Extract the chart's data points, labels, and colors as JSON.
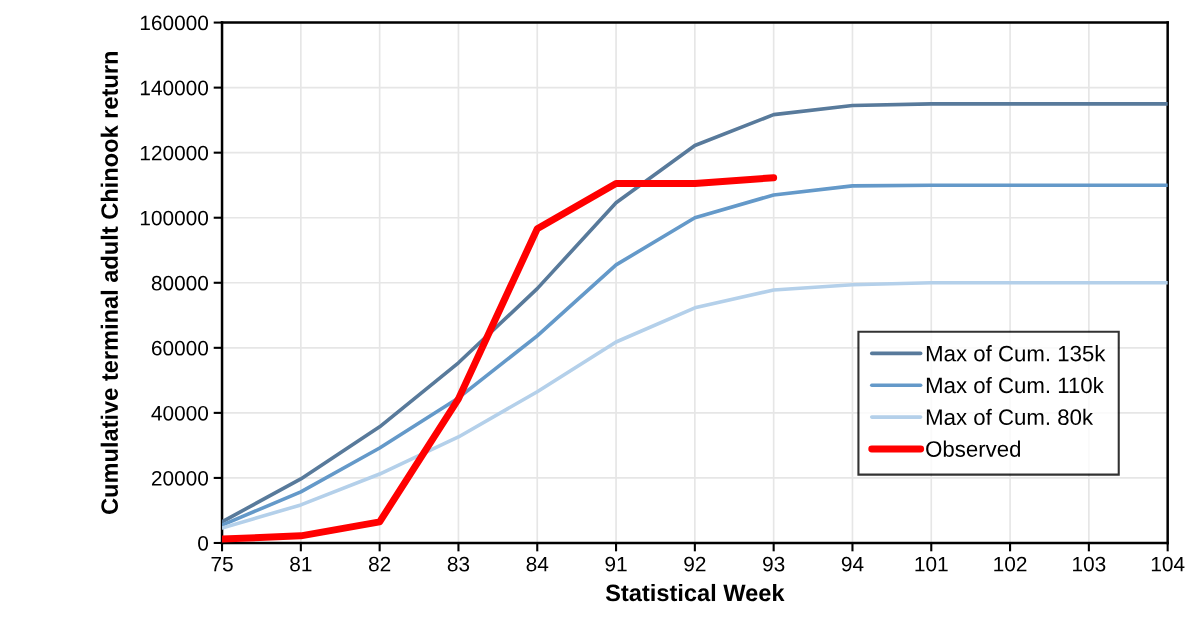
{
  "chart_data": {
    "type": "line",
    "xlabel": "Statistical Week",
    "ylabel": "Cumulative terminal adult Chinook return",
    "categories": [
      "75",
      "81",
      "82",
      "83",
      "84",
      "91",
      "92",
      "93",
      "94",
      "101",
      "102",
      "103",
      "104"
    ],
    "series": [
      {
        "name": "Max of Cum. 135k",
        "color": "#587a9b",
        "values": [
          6500,
          19700,
          35700,
          55400,
          78200,
          104600,
          122200,
          131700,
          134500,
          135000,
          135000,
          135000,
          135000
        ]
      },
      {
        "name": "Max of Cum. 110k",
        "color": "#6499c9",
        "values": [
          5500,
          15700,
          29200,
          44600,
          63700,
          85500,
          100000,
          107000,
          109800,
          110000,
          110000,
          110000,
          110000
        ]
      },
      {
        "name": "Max of Cum. 80k",
        "color": "#b4d0ea",
        "values": [
          4600,
          11700,
          21200,
          32600,
          46500,
          61800,
          72300,
          77800,
          79400,
          80000,
          80000,
          80000,
          80000
        ]
      },
      {
        "name": "Observed",
        "color": "#ff0000",
        "values": [
          1200,
          2200,
          6500,
          44300,
          96600,
          110500,
          110500,
          112300,
          null,
          null,
          null,
          null,
          null
        ]
      }
    ],
    "ylim": [
      0,
      160000
    ],
    "yticks": [
      0,
      20000,
      40000,
      60000,
      80000,
      100000,
      120000,
      140000,
      160000
    ],
    "grid": true,
    "legend": "bottom right",
    "marker": "none",
    "line_style": "solid"
  }
}
